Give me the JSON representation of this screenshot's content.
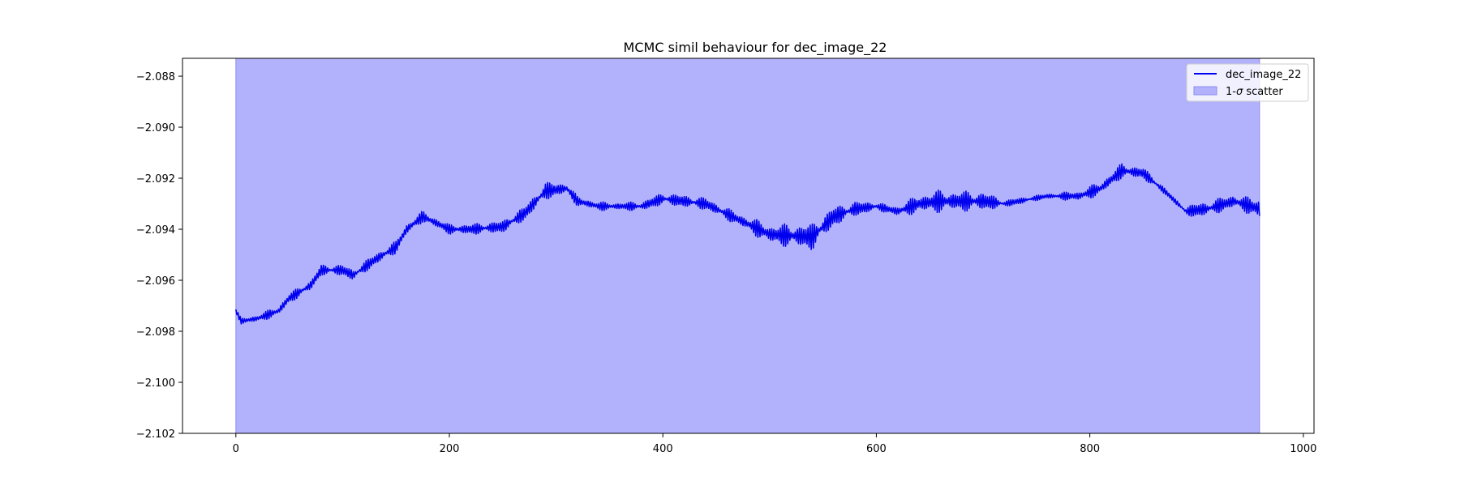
{
  "chart_data": {
    "type": "line",
    "title": "MCMC simil behaviour for dec_image_22",
    "xlabel": "",
    "ylabel": "",
    "xlim": [
      -50,
      1010
    ],
    "ylim": [
      -2.102,
      -2.0873
    ],
    "x_ticks": [
      0,
      200,
      400,
      600,
      800,
      1000
    ],
    "x_tick_labels": [
      "0",
      "200",
      "400",
      "600",
      "800",
      "1000"
    ],
    "y_ticks": [
      -2.102,
      -2.1,
      -2.098,
      -2.096,
      -2.094,
      -2.092,
      -2.09,
      -2.088
    ],
    "y_tick_labels": [
      "−2.102",
      "−2.100",
      "−2.098",
      "−2.096",
      "−2.094",
      "−2.092",
      "−2.090",
      "−2.088"
    ],
    "grid": false,
    "legend_position": "upper-right",
    "series": [
      {
        "name": "dec_image_22",
        "kind": "line",
        "color": "#0000ee",
        "oscillation_envelope": [
          [
            0,
            0.0001
          ],
          [
            40,
            0.0002
          ],
          [
            150,
            0.00025
          ],
          [
            200,
            0.0002
          ],
          [
            250,
            0.00025
          ],
          [
            290,
            0.00035
          ],
          [
            320,
            0.0002
          ],
          [
            360,
            0.00015
          ],
          [
            400,
            0.00025
          ],
          [
            470,
            0.00025
          ],
          [
            500,
            0.0004
          ],
          [
            540,
            0.00055
          ],
          [
            580,
            0.0003
          ],
          [
            610,
            0.00015
          ],
          [
            650,
            0.00045
          ],
          [
            700,
            0.0004
          ],
          [
            720,
            0.00015
          ],
          [
            760,
            0.0001
          ],
          [
            800,
            0.00025
          ],
          [
            830,
            0.0003
          ],
          [
            860,
            0.0002
          ],
          [
            880,
            0.0001
          ],
          [
            900,
            0.0003
          ],
          [
            945,
            0.0003
          ],
          [
            959,
            0.0005
          ]
        ],
        "trend": [
          [
            0,
            -2.0972
          ],
          [
            5,
            -2.0976
          ],
          [
            20,
            -2.0975
          ],
          [
            40,
            -2.0972
          ],
          [
            50,
            -2.0967
          ],
          [
            70,
            -2.0962
          ],
          [
            80,
            -2.0956
          ],
          [
            100,
            -2.0956
          ],
          [
            110,
            -2.0958
          ],
          [
            130,
            -2.0952
          ],
          [
            150,
            -2.0947
          ],
          [
            160,
            -2.094
          ],
          [
            175,
            -2.0935
          ],
          [
            200,
            -2.094
          ],
          [
            220,
            -2.094
          ],
          [
            250,
            -2.0939
          ],
          [
            270,
            -2.0934
          ],
          [
            290,
            -2.0925
          ],
          [
            310,
            -2.0924
          ],
          [
            320,
            -2.0929
          ],
          [
            340,
            -2.0931
          ],
          [
            360,
            -2.0931
          ],
          [
            380,
            -2.0931
          ],
          [
            400,
            -2.0928
          ],
          [
            420,
            -2.0929
          ],
          [
            440,
            -2.093
          ],
          [
            470,
            -2.0936
          ],
          [
            500,
            -2.0942
          ],
          [
            540,
            -2.0943
          ],
          [
            560,
            -2.0935
          ],
          [
            580,
            -2.0932
          ],
          [
            600,
            -2.0931
          ],
          [
            620,
            -2.0933
          ],
          [
            640,
            -2.093
          ],
          [
            660,
            -2.0929
          ],
          [
            700,
            -2.0929
          ],
          [
            720,
            -2.093
          ],
          [
            760,
            -2.0927
          ],
          [
            790,
            -2.0927
          ],
          [
            810,
            -2.0924
          ],
          [
            830,
            -2.0917
          ],
          [
            850,
            -2.0918
          ],
          [
            870,
            -2.0925
          ],
          [
            890,
            -2.0933
          ],
          [
            910,
            -2.0932
          ],
          [
            935,
            -2.0929
          ],
          [
            959,
            -2.0932
          ]
        ]
      },
      {
        "name": "1-σ scatter",
        "kind": "band",
        "color": "#b2b2fc",
        "edge_color": "#8c8cf0",
        "x_range": [
          0,
          959
        ],
        "lower": -2.102,
        "upper": -2.0873
      }
    ],
    "legend_line_label": "dec_image_22",
    "legend_band_label_prefix": "1-",
    "legend_band_label_symbol": "σ",
    "legend_band_label_suffix": " scatter"
  }
}
